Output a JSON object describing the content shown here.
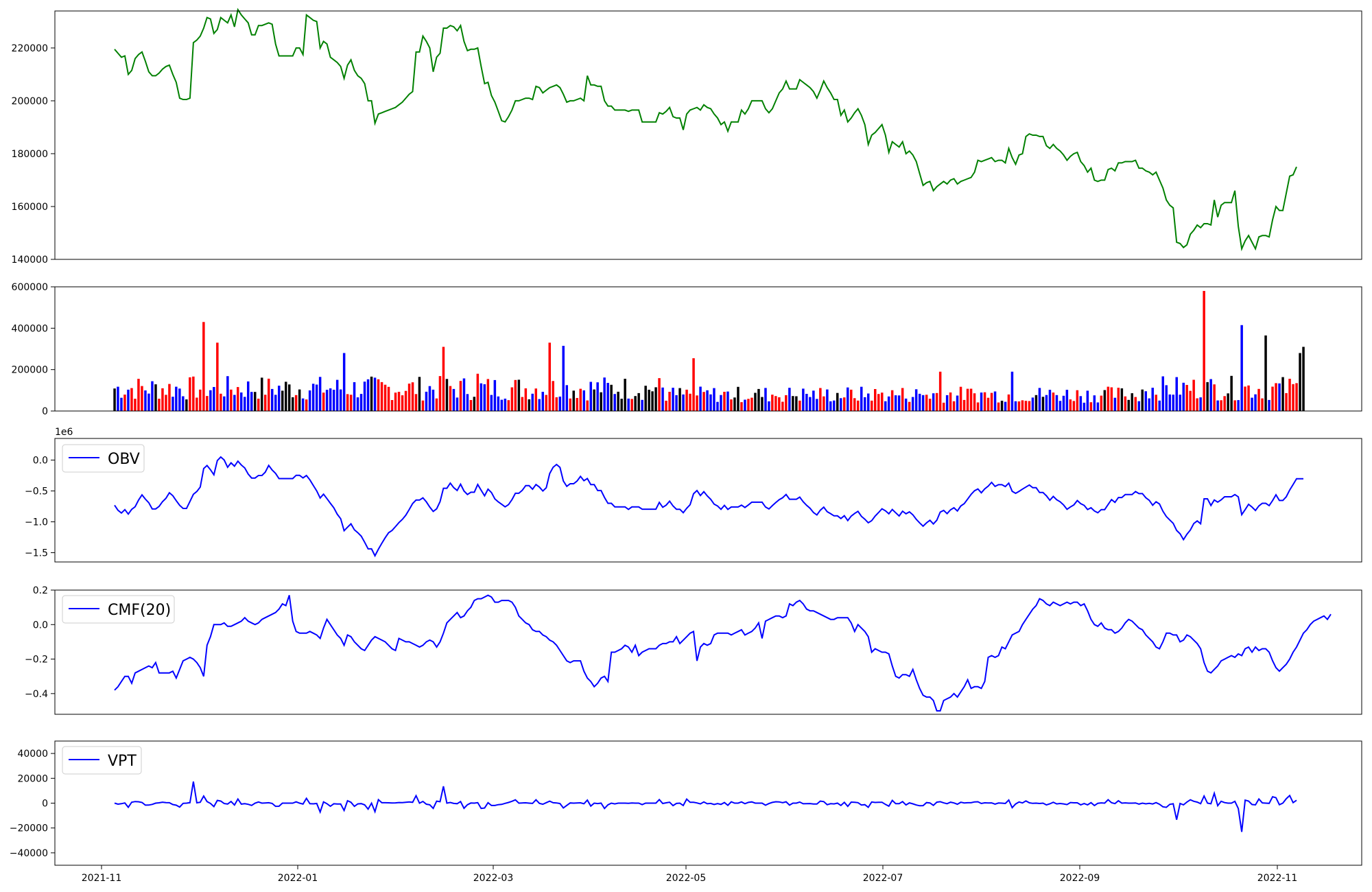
{
  "chart_data": [
    {
      "type": "line",
      "panel": "price",
      "color": "#008000",
      "x_ticks": [],
      "y_ticks": [
        "140000",
        "160000",
        "180000",
        "200000",
        "220000"
      ],
      "ylim": [
        140000,
        234000
      ],
      "series": [
        {
          "values": [
            219500,
            218000,
            216500,
            217000,
            210000,
            211500,
            216000,
            217500,
            218500,
            215000,
            211000,
            209500,
            209500,
            210500,
            212000,
            213000,
            213500,
            210000,
            207000,
            201000,
            200500,
            200500,
            201000,
            222000,
            223000,
            224500,
            227500,
            231500,
            231000,
            225500,
            227000,
            231500,
            230500,
            229500,
            232500,
            228000,
            234500,
            232500,
            231000,
            229500,
            225000,
            225000,
            228500,
            228500,
            229000,
            229500,
            229000,
            221500,
            217000,
            217000,
            217000,
            217000,
            217000,
            220000,
            220000,
            217500,
            232500,
            231500,
            230500,
            230000,
            220000,
            222500,
            221500,
            216500,
            215500,
            214500,
            213000,
            208500,
            213500,
            215500,
            211500,
            209500,
            208500,
            206500,
            200000,
            200000,
            191500,
            195000,
            195500,
            196000,
            196500,
            197000,
            197500,
            198500,
            199500,
            201000,
            202500,
            203500,
            218500,
            218500,
            224500,
            222500,
            220000,
            211000,
            216500,
            218000,
            227500,
            227500,
            228500,
            228000,
            226500,
            228500,
            222500,
            219000,
            219500,
            219500,
            220000,
            213000,
            206500,
            207000,
            202000,
            199500,
            196000,
            192500,
            192000,
            194000,
            196500,
            200000,
            200000,
            200500,
            201000,
            201000,
            200500,
            205500,
            205000,
            203000,
            204000,
            205000,
            205500,
            206000,
            205000,
            202500,
            199500,
            200000,
            200000,
            200500,
            201000,
            200000,
            209500,
            206000,
            206000,
            205500,
            205500,
            200000,
            198000,
            198000,
            196500,
            196500,
            196500,
            196500,
            196000,
            196500,
            196500,
            196500,
            192000,
            192000,
            192000,
            192000,
            192000,
            195500,
            195000,
            196000,
            197500,
            194000,
            193500,
            193500,
            189000,
            195000,
            196500,
            197000,
            197500,
            196500,
            198500,
            197500,
            197000,
            195000,
            193500,
            191000,
            192000,
            188500,
            192000,
            192000,
            192000,
            196500,
            195000,
            197000,
            200000,
            200000,
            200000,
            200000,
            197000,
            195500,
            197000,
            200000,
            203000,
            204500,
            207500,
            204500,
            204500,
            204500,
            208000,
            207000,
            206000,
            205000,
            203500,
            201000,
            204000,
            207500,
            205000,
            203000,
            200500,
            200500,
            194500,
            196500,
            192000,
            193500,
            195500,
            197000,
            194500,
            191000,
            183500,
            187000,
            188000,
            189500,
            191000,
            187000,
            180500,
            184500,
            183500,
            182500,
            184500,
            180000,
            181000,
            179500,
            177000,
            172500,
            168000,
            169000,
            169500,
            166000,
            167500,
            168500,
            169500,
            168500,
            170000,
            170500,
            168500,
            169500,
            170000,
            170500,
            171000,
            173000,
            177500,
            177000,
            177500,
            178000,
            178500,
            177000,
            177500,
            177500,
            176500,
            182000,
            178500,
            176000,
            179500,
            180000,
            186500,
            187500,
            187000,
            187000,
            186500,
            186500,
            183000,
            182000,
            183500,
            182000,
            181000,
            179500,
            177500,
            179000,
            180000,
            180500,
            177000,
            175500,
            173000,
            174500,
            170000,
            169500,
            170000,
            170000,
            174000,
            174500,
            173500,
            176500,
            176500,
            177000,
            177000,
            177000,
            177500,
            174500,
            174500,
            173500,
            173000,
            172000,
            173000,
            170000,
            167000,
            162500,
            160500,
            159500,
            146500,
            146000,
            144500,
            145500,
            149500,
            151000,
            153000,
            152000,
            153500,
            153500,
            153000,
            162500,
            156000,
            160500,
            161500,
            161500,
            161500,
            166000,
            152500,
            144000,
            147000,
            149000,
            146500,
            144000,
            148500,
            149000,
            149000,
            148500,
            155000,
            160000,
            158500,
            158500,
            165000,
            171500,
            172000,
            175000
          ]
        }
      ]
    },
    {
      "type": "bar",
      "panel": "volume",
      "colors": {
        "up": "#ff0000",
        "down": "#0000ff",
        "flat": "#000000"
      },
      "y_ticks": [
        "0",
        "200000",
        "400000",
        "600000"
      ],
      "ylim": [
        0,
        600000
      ]
    },
    {
      "type": "line",
      "panel": "obv",
      "color": "#0000ff",
      "legend": "OBV",
      "offset_label": "1e6",
      "y_ticks": [
        "0.0",
        "−0.5",
        "−1.0",
        "−1.5"
      ],
      "ylim": [
        -1.65,
        0.35
      ]
    },
    {
      "type": "line",
      "panel": "cmf",
      "color": "#0000ff",
      "legend": "CMF(20)",
      "y_ticks": [
        "0.2",
        "0.0",
        "−0.2",
        "−0.4"
      ],
      "ylim": [
        -0.52,
        0.2
      ],
      "series": [
        {
          "values": [
            -0.38,
            -0.36,
            -0.33,
            -0.3,
            -0.3,
            -0.34,
            -0.28,
            -0.27,
            -0.26,
            -0.25,
            -0.24,
            -0.25,
            -0.22,
            -0.28,
            -0.28,
            -0.28,
            -0.28,
            -0.27,
            -0.31,
            -0.26,
            -0.21,
            -0.2,
            -0.19,
            -0.2,
            -0.22,
            -0.25,
            -0.3,
            -0.12,
            -0.07,
            0.0,
            0.0,
            0.0,
            0.01,
            -0.01,
            -0.01,
            0.0,
            0.01,
            0.02,
            0.04,
            0.02,
            0.01,
            0.0,
            0.01,
            0.03,
            0.04,
            0.05,
            0.06,
            0.07,
            0.09,
            0.12,
            0.11,
            0.17,
            0.02,
            -0.04,
            -0.05,
            -0.05,
            -0.05,
            -0.04,
            -0.05,
            -0.06,
            -0.08,
            -0.02,
            0.03,
            0.0,
            -0.03,
            -0.06,
            -0.08,
            -0.12,
            -0.06,
            -0.07,
            -0.1,
            -0.12,
            -0.14,
            -0.15,
            -0.12,
            -0.09,
            -0.07,
            -0.08,
            -0.09,
            -0.1,
            -0.12,
            -0.14,
            -0.15,
            -0.08,
            -0.09,
            -0.1,
            -0.1,
            -0.11,
            -0.12,
            -0.13,
            -0.12,
            -0.1,
            -0.09,
            -0.1,
            -0.13,
            -0.1,
            -0.05,
            0.01,
            0.03,
            0.05,
            0.07,
            0.04,
            0.05,
            0.08,
            0.1,
            0.14,
            0.15,
            0.15,
            0.16,
            0.17,
            0.16,
            0.13,
            0.13,
            0.14,
            0.14,
            0.14,
            0.13,
            0.1,
            0.05,
            0.03,
            0.01,
            0.0,
            -0.03,
            -0.04,
            -0.04,
            -0.06,
            -0.07,
            -0.09,
            -0.1,
            -0.12,
            -0.15,
            -0.18,
            -0.21,
            -0.22,
            -0.21,
            -0.21,
            -0.21,
            -0.27,
            -0.31,
            -0.33,
            -0.36,
            -0.34,
            -0.31,
            -0.3,
            -0.33,
            -0.16,
            -0.16,
            -0.15,
            -0.14,
            -0.12,
            -0.13,
            -0.16,
            -0.12,
            -0.18,
            -0.16,
            -0.15,
            -0.14,
            -0.14,
            -0.14,
            -0.12,
            -0.11,
            -0.11,
            -0.1,
            -0.1,
            -0.07,
            -0.11,
            -0.09,
            -0.07,
            -0.05,
            -0.04,
            -0.21,
            -0.13,
            -0.11,
            -0.12,
            -0.11,
            -0.06,
            -0.05,
            -0.05,
            -0.05,
            -0.05,
            -0.06,
            -0.05,
            -0.04,
            -0.03,
            -0.06,
            -0.05,
            -0.04,
            -0.02,
            0.01,
            -0.08,
            0.02,
            0.03,
            0.04,
            0.05,
            0.05,
            0.04,
            0.05,
            0.12,
            0.11,
            0.13,
            0.14,
            0.12,
            0.09,
            0.08,
            0.08,
            0.07,
            0.06,
            0.05,
            0.04,
            0.03,
            0.03,
            0.04,
            0.04,
            0.04,
            0.04,
            0.01,
            -0.04,
            0.0,
            -0.02,
            -0.04,
            -0.07,
            -0.16,
            -0.14,
            -0.15,
            -0.16,
            -0.16,
            -0.17,
            -0.24,
            -0.3,
            -0.31,
            -0.29,
            -0.29,
            -0.3,
            -0.26,
            -0.32,
            -0.37,
            -0.41,
            -0.42,
            -0.42,
            -0.44,
            -0.5,
            -0.5,
            -0.44,
            -0.43,
            -0.42,
            -0.4,
            -0.42,
            -0.39,
            -0.36,
            -0.32,
            -0.37,
            -0.36,
            -0.36,
            -0.37,
            -0.33,
            -0.19,
            -0.18,
            -0.19,
            -0.18,
            -0.13,
            -0.14,
            -0.1,
            -0.06,
            -0.05,
            -0.04,
            0.0,
            0.03,
            0.06,
            0.09,
            0.11,
            0.15,
            0.14,
            0.12,
            0.11,
            0.13,
            0.12,
            0.11,
            0.12,
            0.13,
            0.12,
            0.13,
            0.13,
            0.11,
            0.12,
            0.08,
            0.03,
            0.0,
            -0.01,
            0.01,
            -0.02,
            -0.03,
            -0.03,
            -0.05,
            -0.04,
            -0.02,
            0.01,
            0.03,
            0.02,
            0.0,
            -0.02,
            -0.03,
            -0.06,
            -0.08,
            -0.1,
            -0.13,
            -0.14,
            -0.1,
            -0.05,
            -0.05,
            -0.06,
            -0.06,
            -0.1,
            -0.09,
            -0.06,
            -0.07,
            -0.09,
            -0.11,
            -0.14,
            -0.22,
            -0.27,
            -0.28,
            -0.26,
            -0.24,
            -0.21,
            -0.2,
            -0.19,
            -0.18,
            -0.19,
            -0.17,
            -0.18,
            -0.14,
            -0.13,
            -0.16,
            -0.13,
            -0.15,
            -0.14,
            -0.14,
            -0.16,
            -0.21,
            -0.25,
            -0.27,
            -0.25,
            -0.23,
            -0.2,
            -0.16,
            -0.13,
            -0.09,
            -0.05,
            -0.03,
            0.0,
            0.02,
            0.03,
            0.04,
            0.05,
            0.03,
            0.06
          ]
        }
      ]
    },
    {
      "type": "line",
      "panel": "vpt",
      "color": "#0000ff",
      "legend": "VPT",
      "y_ticks": [
        "40000",
        "20000",
        "0",
        "−20000",
        "−40000"
      ],
      "ylim": [
        -50000,
        50000
      ],
      "x_ticks": [
        "2021-11",
        "2022-01",
        "2022-03",
        "2022-05",
        "2022-07",
        "2022-09",
        "2022-11"
      ]
    }
  ]
}
